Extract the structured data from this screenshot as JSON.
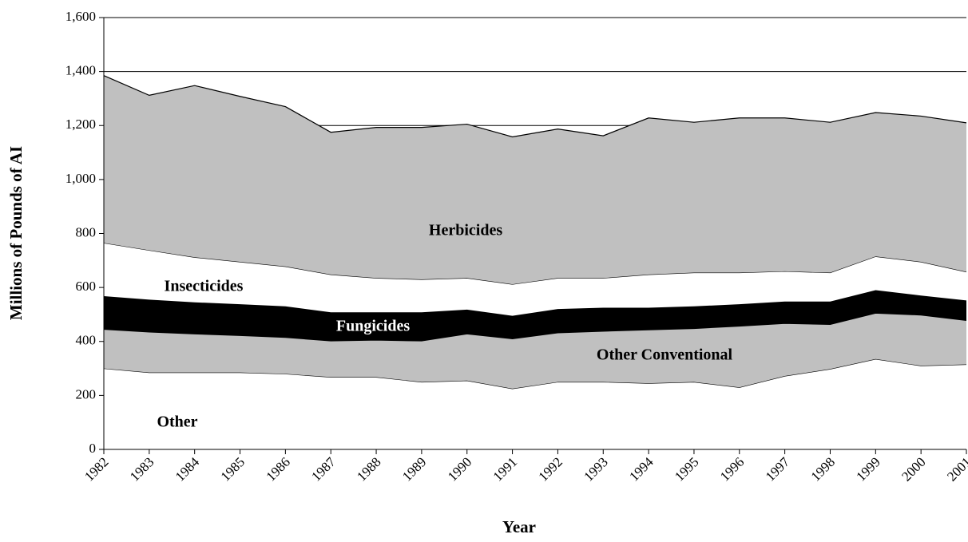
{
  "chart_data": {
    "type": "stacked_area",
    "x_label": "Year",
    "y_label": "Millions of Pounds of AI",
    "categories": [
      "1982",
      "1983",
      "1984",
      "1985",
      "1986",
      "1987",
      "1988",
      "1989",
      "1990",
      "1991",
      "1992",
      "1993",
      "1994",
      "1995",
      "1996",
      "1997",
      "1998",
      "1999",
      "2000",
      "2001"
    ],
    "series": [
      {
        "name": "Other",
        "color": "#ffffff",
        "values": [
          300,
          285,
          285,
          285,
          280,
          268,
          268,
          250,
          255,
          225,
          250,
          250,
          245,
          250,
          230,
          272,
          298,
          335,
          310,
          315
        ]
      },
      {
        "name": "Other Conventional",
        "color": "#c0c0c0",
        "values": [
          145,
          150,
          143,
          137,
          135,
          134,
          137,
          152,
          173,
          185,
          182,
          188,
          198,
          198,
          227,
          195,
          165,
          170,
          188,
          163
        ]
      },
      {
        "name": "Fungicides",
        "color": "#000000",
        "values": [
          123,
          120,
          117,
          116,
          115,
          106,
          103,
          106,
          90,
          85,
          88,
          87,
          82,
          82,
          81,
          81,
          85,
          85,
          72,
          74
        ]
      },
      {
        "name": "Insecticides",
        "color": "#ffffff",
        "values": [
          197,
          183,
          167,
          157,
          148,
          140,
          127,
          122,
          117,
          117,
          115,
          110,
          123,
          125,
          117,
          112,
          107,
          125,
          125,
          106
        ]
      },
      {
        "name": "Herbicides",
        "color": "#c0c0c0",
        "values": [
          620,
          574,
          636,
          613,
          592,
          527,
          558,
          563,
          570,
          546,
          552,
          527,
          580,
          557,
          573,
          568,
          557,
          533,
          540,
          552
        ]
      }
    ],
    "ylim": [
      0,
      1600
    ],
    "yticks": [
      0,
      200,
      400,
      600,
      800,
      {
        "value": 1000,
        "label": "1,000"
      },
      {
        "value": 1200,
        "label": "1,200"
      },
      {
        "value": 1400,
        "label": "1,400"
      },
      {
        "value": 1600,
        "label": "1,600"
      }
    ],
    "grid": true
  }
}
